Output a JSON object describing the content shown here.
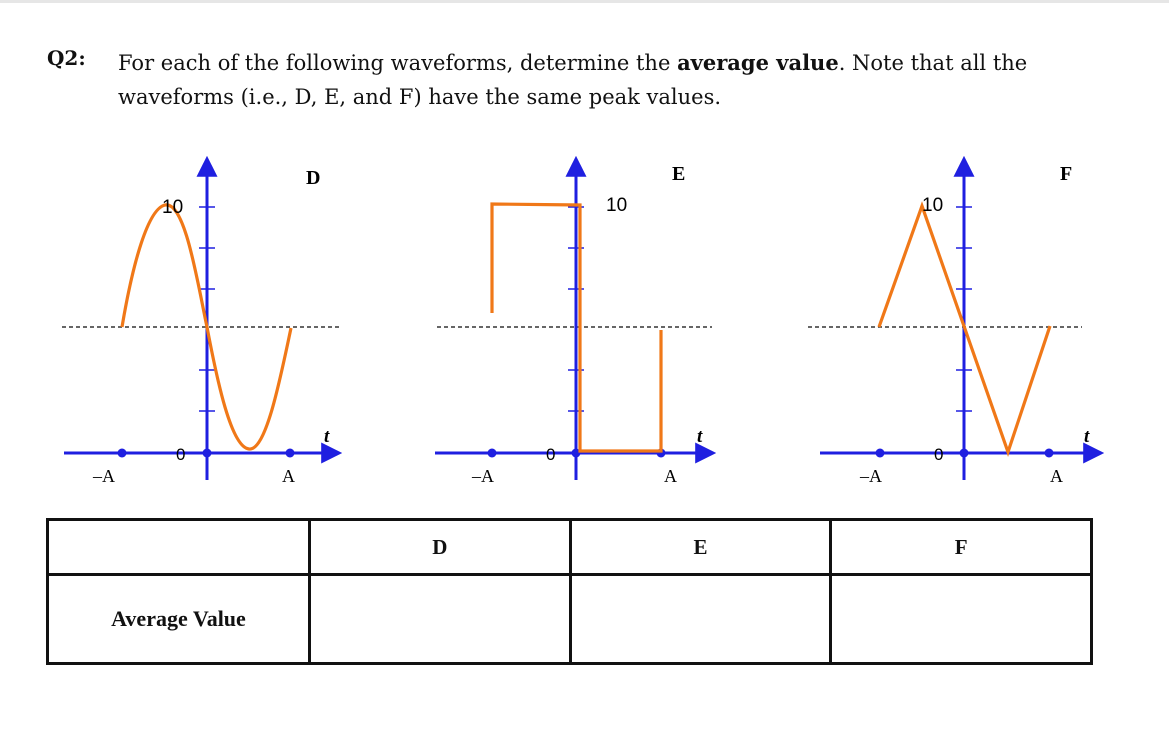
{
  "question": {
    "number": "Q2:",
    "text_before": "For each of the following waveforms, determine the ",
    "text_bold": "average value",
    "text_after": ". Note that all the waveforms (i.e., D, E, and F) have the same peak values."
  },
  "waveforms": [
    {
      "id": "D",
      "label": "D",
      "shape": "sine",
      "peak_label": "10",
      "zero_label": "0",
      "neg_label": "–A",
      "pos_label": "A",
      "time_label": "t"
    },
    {
      "id": "E",
      "label": "E",
      "shape": "square",
      "peak_label": "10",
      "zero_label": "0",
      "neg_label": "–A",
      "pos_label": "A",
      "time_label": "t"
    },
    {
      "id": "F",
      "label": "F",
      "shape": "triangle",
      "peak_label": "10",
      "zero_label": "0",
      "neg_label": "–A",
      "pos_label": "A",
      "time_label": "t"
    }
  ],
  "colors": {
    "axis": "#1f1fe0",
    "signal": "#f07818",
    "dash": "#333333"
  },
  "table": {
    "headers": [
      "",
      "D",
      "E",
      "F"
    ],
    "row_label": "Average Value",
    "values": [
      "",
      "",
      ""
    ]
  }
}
